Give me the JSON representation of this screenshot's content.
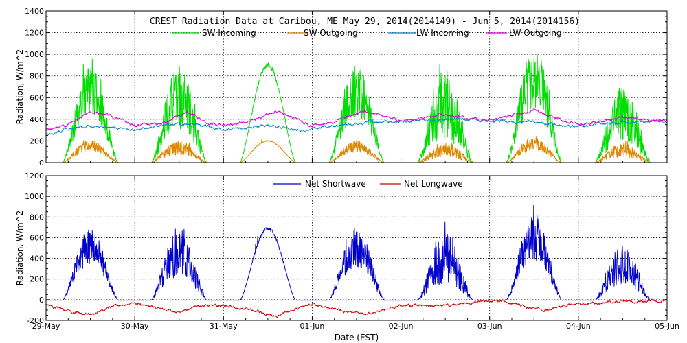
{
  "chart_data": [
    {
      "type": "line",
      "title": "CREST Radiation Data at Caribou, ME   May 29, 2014(2014149) - Jun  5, 2014(2014156)",
      "ylabel": "Radiation, W/m^2",
      "ylim": [
        0,
        1400
      ],
      "yticks": [
        0,
        200,
        400,
        600,
        800,
        1000,
        1200,
        1400
      ],
      "xlim": [
        0,
        7
      ],
      "grid": true,
      "legend_position": "top",
      "series": [
        {
          "name": "SW Incoming",
          "color": "#00dd00",
          "diurnal": true,
          "daily_peak": [
            900,
            910,
            920,
            910,
            870,
            1080,
            700
          ],
          "sunrise_hour": 4.5,
          "sunset_hour": 19.5,
          "cloudiness": [
            0.55,
            0.75,
            0.05,
            0.6,
            0.85,
            0.6,
            0.8
          ]
        },
        {
          "name": "SW Outgoing",
          "color": "#dd8800",
          "diurnal": true,
          "daily_peak": [
            210,
            205,
            205,
            205,
            195,
            245,
            180
          ],
          "sunrise_hour": 4.5,
          "sunset_hour": 19.5,
          "cloudiness": [
            0.55,
            0.75,
            0.05,
            0.6,
            0.85,
            0.6,
            0.8
          ]
        },
        {
          "name": "LW Incoming",
          "color": "#0088cc",
          "x": [
            0,
            0.2,
            0.5,
            0.8,
            1.0,
            1.5,
            1.8,
            2.0,
            2.5,
            2.9,
            3.2,
            3.6,
            4.0,
            4.5,
            5.0,
            5.5,
            6.0,
            6.3,
            6.5,
            7.0
          ],
          "values": [
            260,
            300,
            340,
            320,
            300,
            360,
            340,
            300,
            345,
            300,
            330,
            370,
            380,
            400,
            390,
            370,
            330,
            360,
            370,
            380
          ]
        },
        {
          "name": "LW Outgoing",
          "color": "#dd00dd",
          "x": [
            0,
            0.2,
            0.5,
            0.8,
            1.0,
            1.3,
            1.6,
            1.8,
            2.0,
            2.3,
            2.6,
            3.0,
            3.2,
            3.6,
            4.0,
            4.5,
            5.0,
            5.5,
            6.0,
            6.5,
            7.0
          ],
          "values": [
            310,
            330,
            480,
            420,
            340,
            360,
            470,
            360,
            345,
            380,
            480,
            340,
            370,
            480,
            380,
            440,
            390,
            480,
            350,
            420,
            380
          ]
        }
      ]
    },
    {
      "type": "line",
      "ylabel": "Radiation, W/m^2",
      "xlabel": "Date (EST)",
      "ylim": [
        -200,
        1200
      ],
      "yticks": [
        -200,
        0,
        200,
        400,
        600,
        800,
        1000,
        1200
      ],
      "xlim": [
        0,
        7
      ],
      "xticks": [
        "29-May",
        "30-May",
        "31-May",
        "01-Jun",
        "02-Jun",
        "03-Jun",
        "04-Jun",
        "05-Jun"
      ],
      "grid": true,
      "legend_position": "top",
      "series": [
        {
          "name": "Net Shortwave",
          "color": "#0000cc",
          "diurnal": true,
          "daily_peak": [
            700,
            710,
            710,
            700,
            670,
            830,
            540
          ],
          "sunrise_hour": 4.5,
          "sunset_hour": 19.5,
          "cloudiness": [
            0.55,
            0.75,
            0.05,
            0.6,
            0.85,
            0.6,
            0.8
          ],
          "night_value": -5
        },
        {
          "name": "Net Longwave",
          "color": "#cc0000",
          "x": [
            0,
            0.3,
            0.5,
            0.8,
            1.0,
            1.5,
            1.8,
            2.0,
            2.3,
            2.6,
            3.0,
            3.3,
            3.6,
            4.0,
            4.5,
            5.0,
            5.3,
            5.6,
            6.0,
            6.5,
            7.0
          ],
          "values": [
            -50,
            -120,
            -140,
            -60,
            -40,
            -120,
            -50,
            -55,
            -100,
            -150,
            -40,
            -100,
            -140,
            -50,
            -60,
            -10,
            -40,
            -100,
            -40,
            -20,
            -10
          ]
        }
      ]
    }
  ]
}
